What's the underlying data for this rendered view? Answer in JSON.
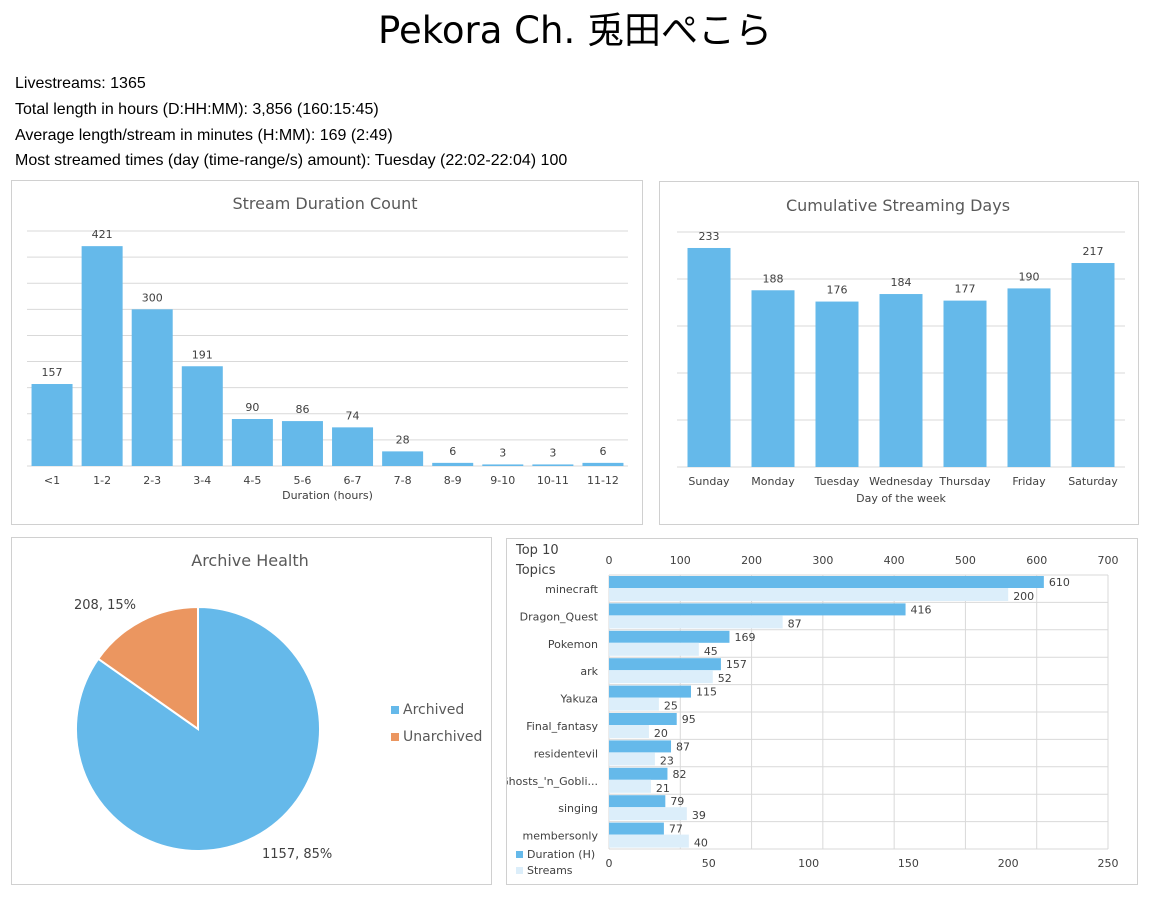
{
  "page": {
    "title": "Pekora Ch. 兎田ぺこら"
  },
  "stats": {
    "livestreams": "Livestreams: 1365",
    "total_length": "Total length in hours (D:HH:MM): 3,856 (160:15:45)",
    "average_length": "Average length/stream in minutes (H:MM): 169 (2:49)",
    "most_streamed": "Most streamed times (day (time-range/s) amount): Tuesday (22:02-22:04) 100"
  },
  "colors": {
    "blue": "#65b9ea",
    "light_blue": "#dceefa",
    "orange": "#eb9660",
    "grid": "#d9d9d9",
    "panel_border": "#d0d0d0"
  },
  "chart_data": [
    {
      "id": "duration",
      "type": "bar",
      "title": "Stream Duration Count",
      "xlabel": "Duration (hours)",
      "ylabel": "",
      "categories": [
        "<1",
        "1-2",
        "2-3",
        "3-4",
        "4-5",
        "5-6",
        "6-7",
        "7-8",
        "8-9",
        "9-10",
        "10-11",
        "11-12"
      ],
      "values": [
        157,
        421,
        300,
        191,
        90,
        86,
        74,
        28,
        6,
        3,
        3,
        6
      ],
      "ylim": [
        0,
        450
      ],
      "grid": true,
      "data_labels": true
    },
    {
      "id": "days",
      "type": "bar",
      "title": "Cumulative Streaming Days",
      "xlabel": "Day of the week",
      "ylabel": "",
      "categories": [
        "Sunday",
        "Monday",
        "Tuesday",
        "Wednesday",
        "Thursday",
        "Friday",
        "Saturday"
      ],
      "values": [
        233,
        188,
        176,
        184,
        177,
        190,
        217
      ],
      "ylim": [
        0,
        250
      ],
      "grid": true,
      "data_labels": true
    },
    {
      "id": "archive",
      "type": "pie",
      "title": "Archive Health",
      "slices": [
        {
          "name": "Archived",
          "value": 1157,
          "percent": 85,
          "label": "1157, 85%"
        },
        {
          "name": "Unarchived",
          "value": 208,
          "percent": 15,
          "label": "208, 15%"
        }
      ],
      "legend": "right"
    },
    {
      "id": "topics",
      "type": "bar",
      "orientation": "horizontal",
      "title": "Top 10 Topics",
      "categories": [
        "minecraft",
        "Dragon_Quest",
        "Pokemon",
        "ark",
        "Yakuza",
        "Final_fantasy",
        "residentevil",
        "Ghosts_'n_Gobli...",
        "singing",
        "membersonly"
      ],
      "series": [
        {
          "name": "Duration (H)",
          "axis": "top",
          "values": [
            610,
            416,
            169,
            157,
            115,
            95,
            87,
            82,
            79,
            77
          ]
        },
        {
          "name": "Streams",
          "axis": "bottom",
          "values": [
            200,
            87,
            45,
            52,
            25,
            20,
            23,
            21,
            39,
            40
          ]
        }
      ],
      "top_axis": {
        "range": [
          0,
          700
        ],
        "ticks": [
          0,
          100,
          200,
          300,
          400,
          500,
          600,
          700
        ]
      },
      "bottom_axis": {
        "range": [
          0,
          250
        ],
        "ticks": [
          0,
          50,
          100,
          150,
          200,
          250
        ]
      },
      "legend": "bottom-left",
      "grid": true
    }
  ]
}
